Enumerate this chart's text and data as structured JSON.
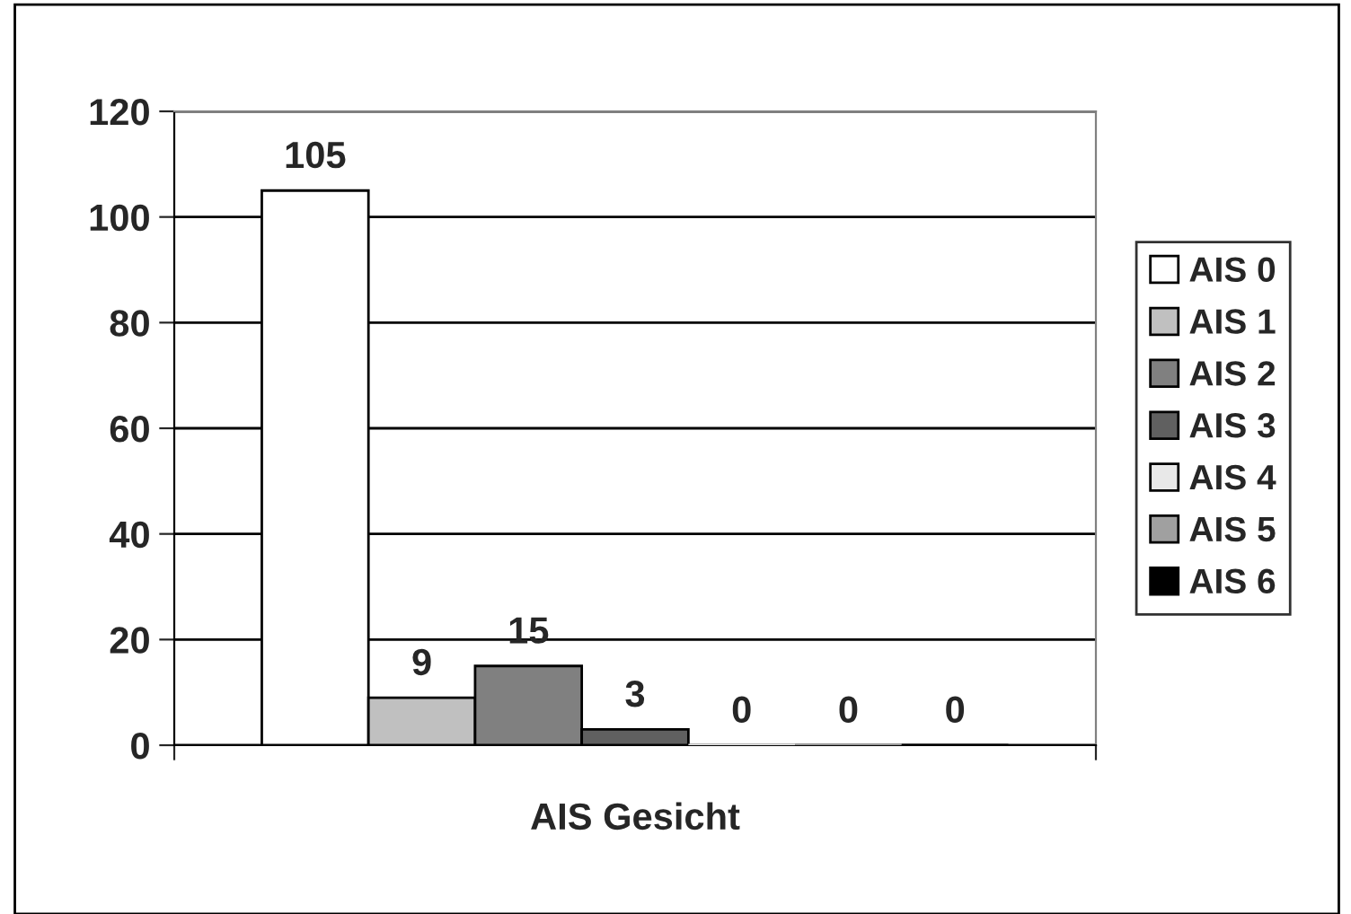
{
  "chart_data": {
    "type": "bar",
    "categories": [
      "AIS Gesicht"
    ],
    "series": [
      {
        "name": "AIS 0",
        "color": "#ffffff",
        "values": [
          105
        ]
      },
      {
        "name": "AIS 1",
        "color": "#c0c0c0",
        "values": [
          9
        ]
      },
      {
        "name": "AIS 2",
        "color": "#808080",
        "values": [
          15
        ]
      },
      {
        "name": "AIS 3",
        "color": "#606060",
        "values": [
          3
        ]
      },
      {
        "name": "AIS 4",
        "color": "#e8e8e8",
        "values": [
          0
        ]
      },
      {
        "name": "AIS 5",
        "color": "#a0a0a0",
        "values": [
          0
        ]
      },
      {
        "name": "AIS 6",
        "color": "#000000",
        "values": [
          0
        ]
      }
    ],
    "ylim": [
      0,
      120
    ],
    "yticks": [
      0,
      20,
      40,
      60,
      80,
      100,
      120
    ],
    "grid": "y",
    "legend": "right",
    "data_labels": true
  }
}
